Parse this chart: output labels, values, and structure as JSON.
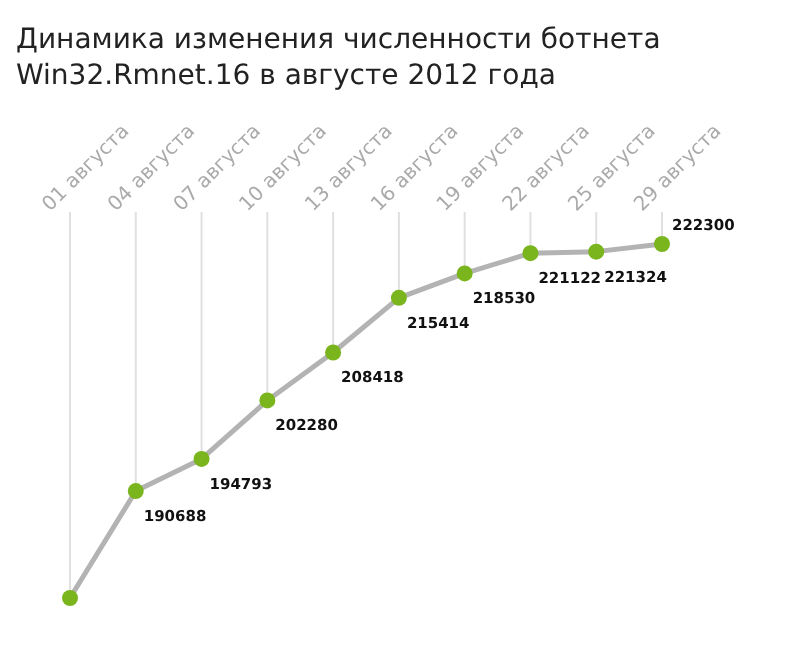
{
  "chart_data": {
    "type": "line",
    "title": "Динамика изменения численности ботнета Win32.Rmnet.16 в августе 2012 года",
    "categories": [
      "01 августа",
      "04 августа",
      "07 августа",
      "10 августа",
      "13 августа",
      "16 августа",
      "19 августа",
      "22 августа",
      "25 августа",
      "29 августа"
    ],
    "series": [
      {
        "color": "#b3b3b3",
        "values": [
          177000,
          190688,
          194793,
          202280,
          208418,
          215414,
          218530,
          221122,
          221324,
          222300
        ],
        "value_labels": [
          null,
          "190688",
          "194793",
          "202280",
          "208418",
          "215414",
          "218530",
          "221122",
          "221324",
          "222300"
        ]
      }
    ],
    "marker": "circle",
    "grid": "x"
  }
}
